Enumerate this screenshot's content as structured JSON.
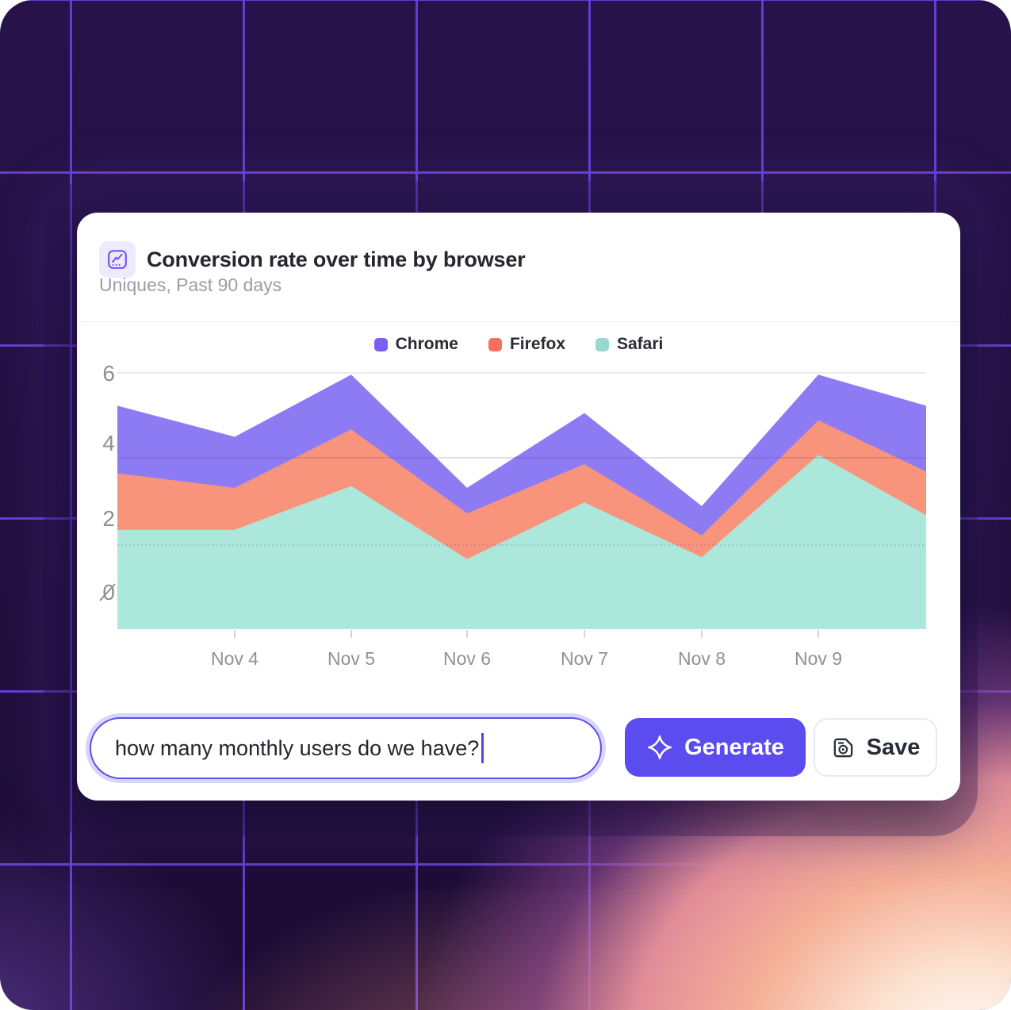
{
  "card": {
    "title": "Conversion rate over time by browser",
    "subtitle": "Uniques, Past 90 days"
  },
  "chart_data": {
    "type": "area",
    "stacked": true,
    "title": "Conversion rate over time by browser",
    "subtitle": "Uniques, Past 90 days",
    "x_tick_labels": [
      "Nov 4",
      "Nov 5",
      "Nov 6",
      "Nov 7",
      "Nov 8",
      "Nov 9"
    ],
    "y_tick_labels": [
      "6",
      "4",
      "2",
      "0"
    ],
    "y_ticks": [
      6,
      4,
      2,
      0
    ],
    "ylim": [
      0,
      6
    ],
    "legend_position": "top-center",
    "grid": true,
    "series": [
      {
        "name": "Chrome",
        "legend_color": "#7a5ff7",
        "fill": "#8d7bf4",
        "values": [
          1.85,
          1.4,
          1.5,
          0.7,
          1.4,
          0.8,
          1.25,
          1.8
        ]
      },
      {
        "name": "Firefox",
        "legend_color": "#f9705a",
        "fill": "#f9947c",
        "values": [
          1.55,
          1.15,
          1.55,
          1.25,
          1.05,
          0.6,
          0.95,
          1.2
        ]
      },
      {
        "name": "Safari",
        "legend_color": "#96d9cd",
        "fill": "#abe7db",
        "values": [
          1.7,
          1.7,
          2.9,
          0.9,
          2.45,
          0.95,
          3.75,
          2.1
        ]
      }
    ],
    "stack_order_bottom_to_top": [
      "Safari",
      "Firefox",
      "Chrome"
    ]
  },
  "prompt": {
    "value": "how many monthly users do we have?"
  },
  "actions": {
    "generate_label": "Generate",
    "save_label": "Save"
  },
  "colors": {
    "accent": "#5b4cf0",
    "axis_text": "#8e8e99",
    "x_axis_text": "#90909b"
  }
}
